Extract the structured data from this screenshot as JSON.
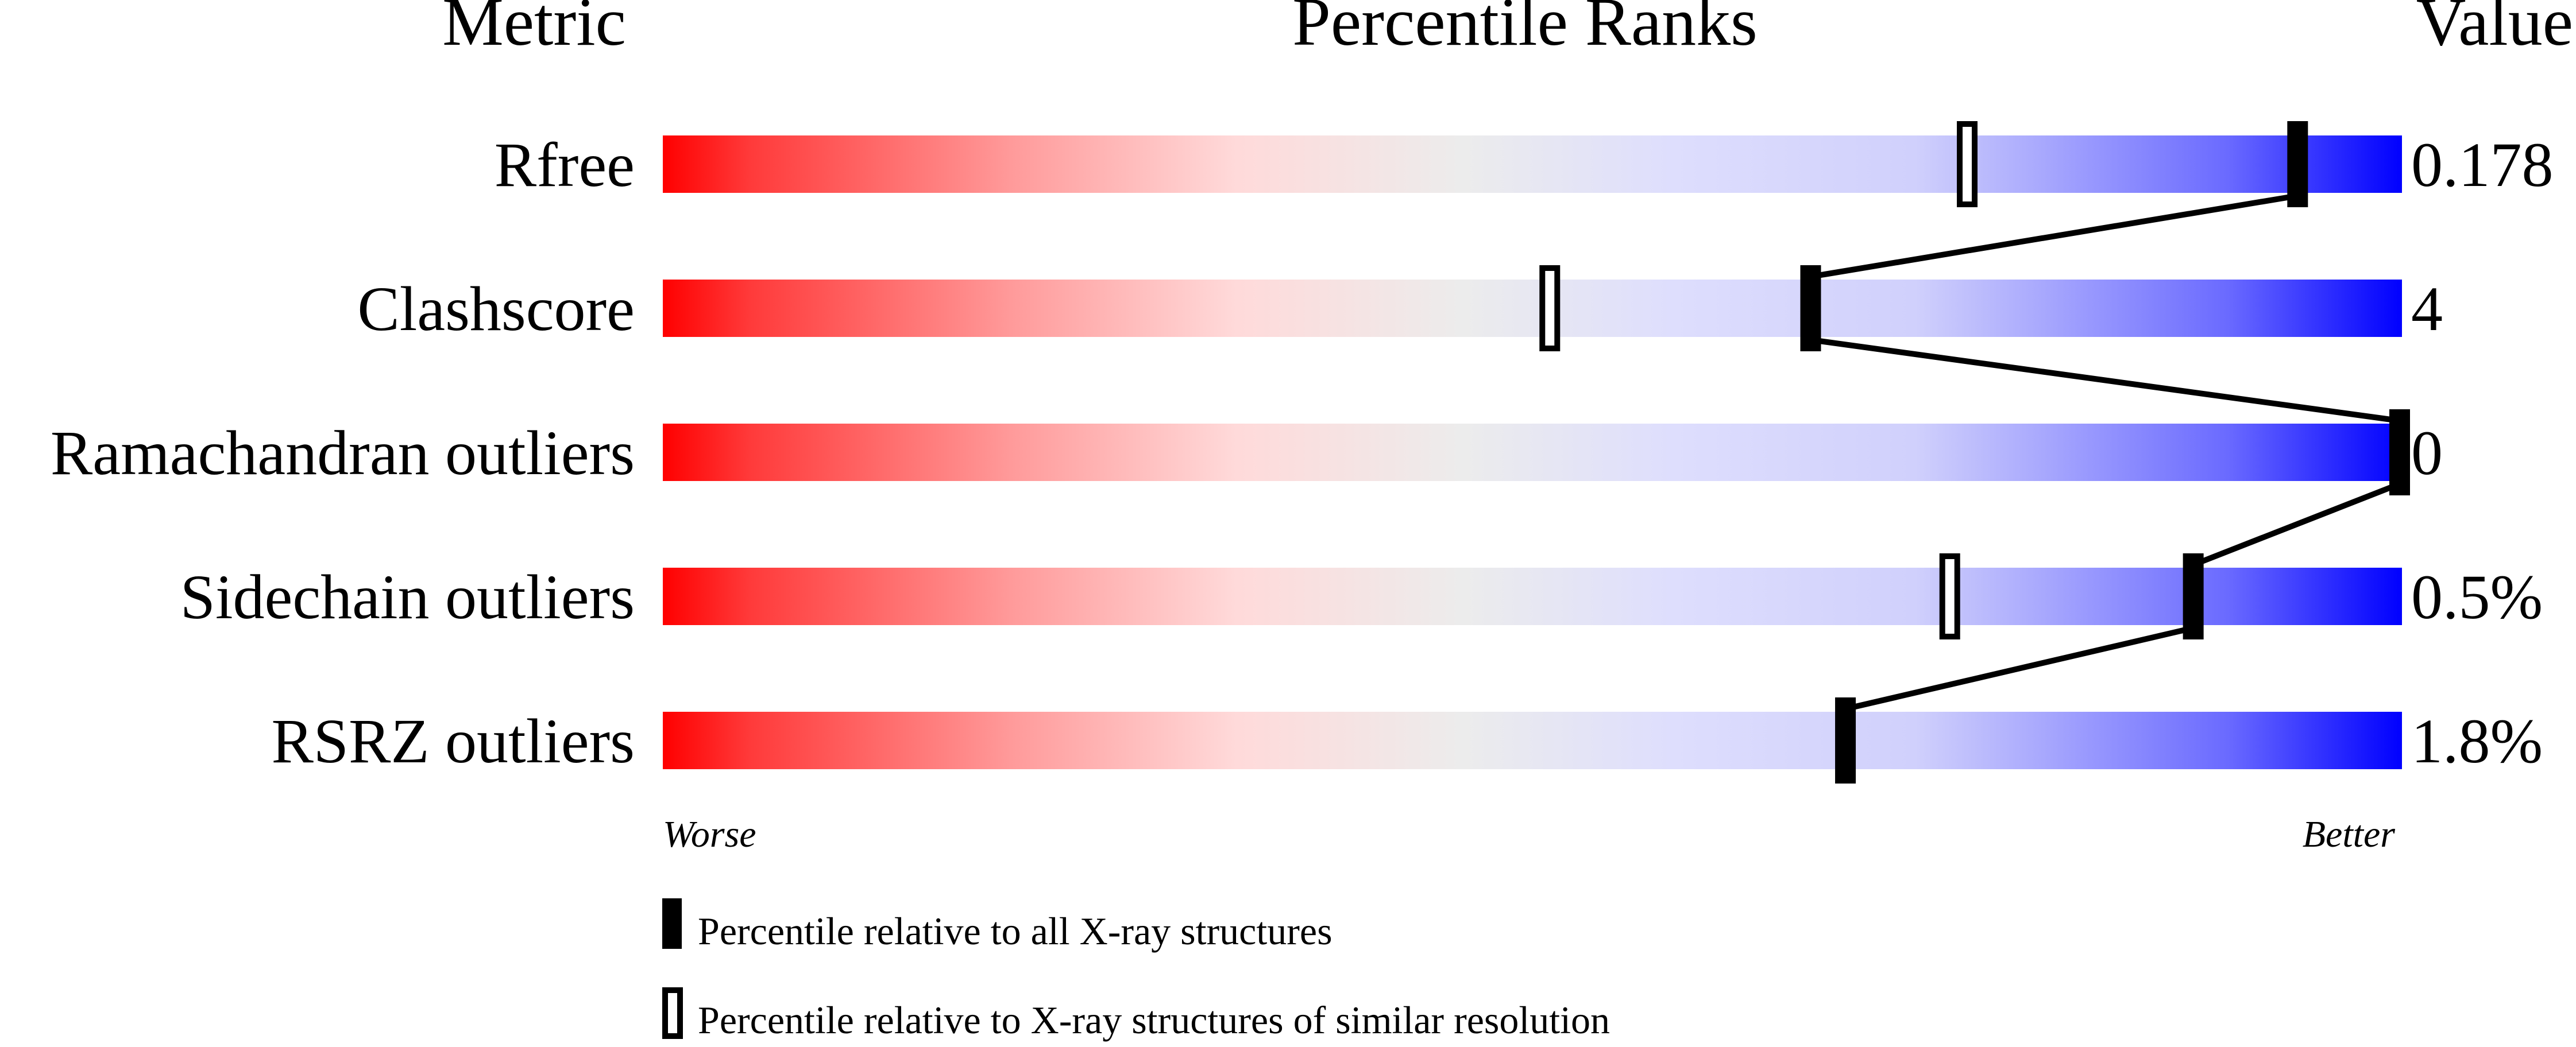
{
  "chart_data": {
    "type": "percentile-slider",
    "headers": {
      "metric": "Metric",
      "ranks": "Percentile Ranks",
      "value": "Value"
    },
    "xlim": [
      0,
      100
    ],
    "axis_labels": {
      "left": "Worse",
      "right": "Better"
    },
    "gradient_colors": [
      "#ff0000",
      "#ececec",
      "#0000ff"
    ],
    "metrics": [
      {
        "name": "Rfree",
        "value": "0.178",
        "percentile_all": 94,
        "percentile_similar": 75
      },
      {
        "name": "Clashscore",
        "value": "4",
        "percentile_all": 66,
        "percentile_similar": 51
      },
      {
        "name": "Ramachandran outliers",
        "value": "0",
        "percentile_all": 100,
        "percentile_similar": null
      },
      {
        "name": "Sidechain outliers",
        "value": "0.5%",
        "percentile_all": 88,
        "percentile_similar": 74
      },
      {
        "name": "RSRZ outliers",
        "value": "1.8%",
        "percentile_all": 68,
        "percentile_similar": null
      }
    ],
    "legend": [
      {
        "marker": "filled",
        "label": "Percentile relative to all X-ray structures"
      },
      {
        "marker": "open",
        "label": "Percentile relative to X-ray structures of similar resolution"
      }
    ]
  }
}
